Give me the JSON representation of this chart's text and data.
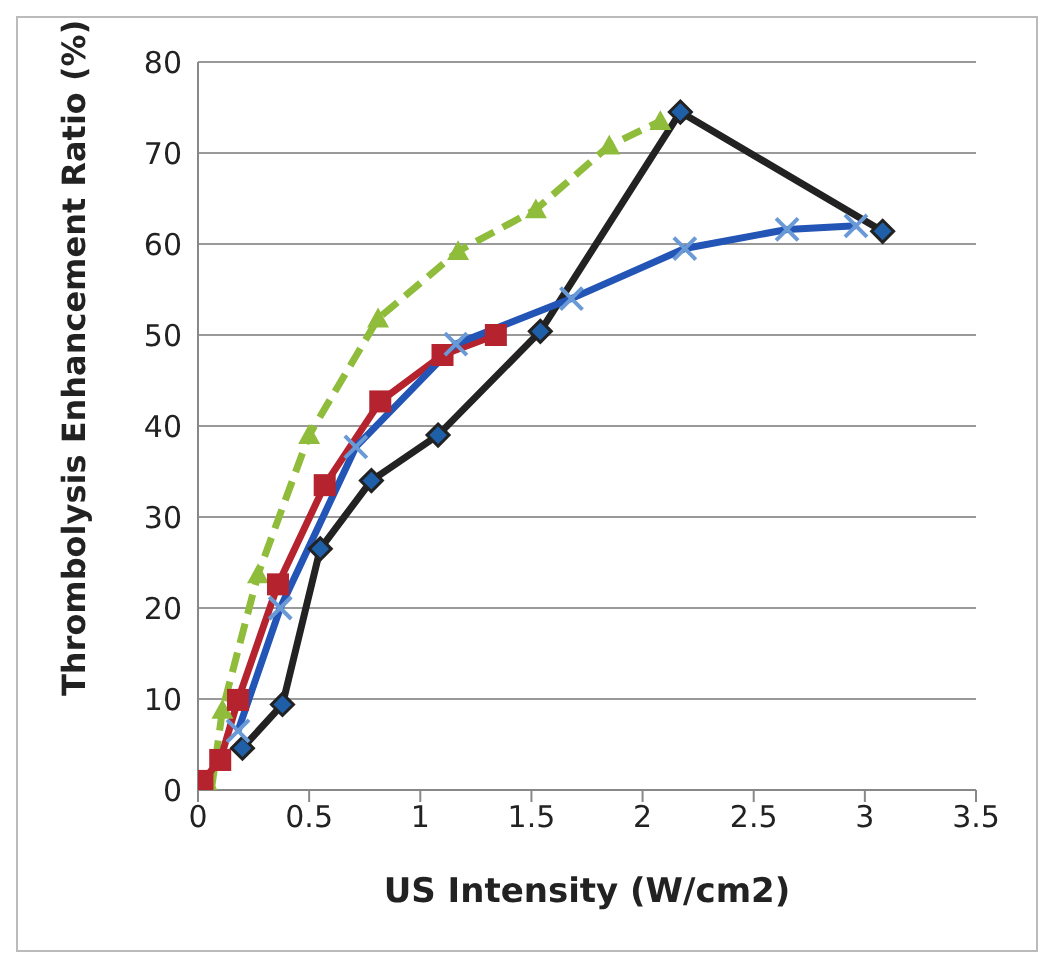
{
  "chart_data": {
    "type": "line",
    "xlabel": "US Intensity (W/cm2)",
    "ylabel": "Thrombolysis Enhancement Ratio (%)",
    "xlim": [
      0,
      3.5
    ],
    "xticks": [
      0,
      0.5,
      1,
      1.5,
      2,
      2.5,
      3,
      3.5
    ],
    "ylim": [
      0,
      80
    ],
    "yticks": [
      0,
      10,
      20,
      30,
      40,
      50,
      60,
      70,
      80
    ],
    "grid": "y",
    "series": [
      {
        "color": "#8fbc3a",
        "marker": "triangle",
        "line_style": "dashed",
        "x": [
          0.06,
          0.11,
          0.27,
          0.5,
          0.81,
          1.17,
          1.52,
          1.85,
          2.08
        ],
        "values": [
          0,
          8.8,
          23.7,
          39,
          51.8,
          59.2,
          63.8,
          70.8,
          73.5
        ]
      },
      {
        "color": "#b5232e",
        "marker": "square",
        "line_style": "solid",
        "x": [
          0.02,
          0.1,
          0.18,
          0.36,
          0.57,
          0.82,
          1.1,
          1.34
        ],
        "values": [
          1,
          3.3,
          9.9,
          22.6,
          33.5,
          42.7,
          47.8,
          50
        ]
      },
      {
        "color": "#222222",
        "marker": "diamond",
        "line_style": "solid",
        "x": [
          0.2,
          0.38,
          0.55,
          0.78,
          1.08,
          1.54,
          2.17,
          3.08
        ],
        "values": [
          4.6,
          9.4,
          26.5,
          34,
          39,
          50.4,
          74.5,
          61.4
        ]
      },
      {
        "color": "#2255b5",
        "marker": "cross",
        "line_style": "solid",
        "x": [
          0.18,
          0.37,
          0.71,
          1.16,
          1.68,
          2.19,
          2.65,
          2.96
        ],
        "values": [
          6.5,
          20,
          37.7,
          49,
          54,
          59.5,
          61.6,
          62
        ]
      }
    ]
  }
}
